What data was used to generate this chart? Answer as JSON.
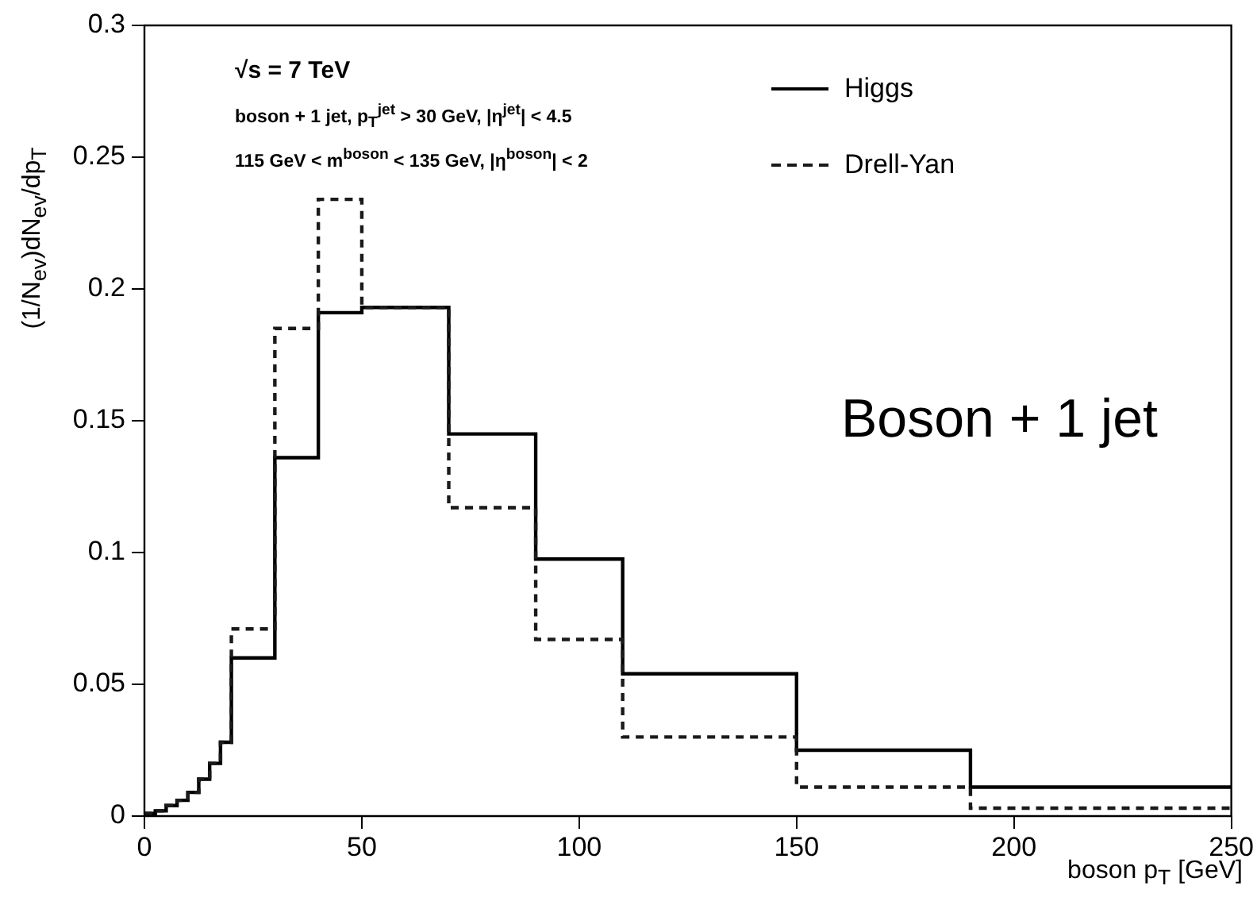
{
  "chart_data": {
    "type": "histogram",
    "xlabel": "boson p$_{T}$ [GeV]",
    "ylabel": "(1/N$_{ev}$)dN$_{ev}$/dp$_{T}$",
    "bins": [
      0,
      2.5,
      5,
      7.5,
      10,
      12.5,
      15,
      17.5,
      20,
      30,
      40,
      50,
      70,
      90,
      110,
      150,
      190,
      250
    ],
    "series": [
      {
        "name": "Higgs",
        "color": "#000000",
        "line_style": "solid",
        "values": [
          0.001,
          0.002,
          0.004,
          0.006,
          0.009,
          0.014,
          0.02,
          0.028,
          0.06,
          0.136,
          0.191,
          0.193,
          0.145,
          0.0975,
          0.054,
          0.025,
          0.011
        ]
      },
      {
        "name": "Drell-Yan",
        "color": "#1a1a1a",
        "line_style": "dashed",
        "values": [
          0.001,
          0.002,
          0.004,
          0.006,
          0.009,
          0.014,
          0.02,
          0.028,
          0.071,
          0.185,
          0.234,
          0.193,
          0.117,
          0.067,
          0.03,
          0.011,
          0.003
        ]
      }
    ],
    "xlim": [
      0,
      250
    ],
    "xticks": [
      0,
      50,
      100,
      150,
      200,
      250
    ],
    "ylim": [
      0,
      0.3
    ],
    "yticks": [
      0,
      0.05,
      0.1,
      0.15,
      0.2,
      0.25,
      0.3
    ],
    "grid": false,
    "legend": "top right",
    "annotations": [
      "√s = 7 TeV",
      "boson + 1 jet, p$_{T}$$^{jet}$ > 30 GeV, |η$^{jet}$| < 4.5",
      "115 GeV < m$^{boson}$ < 135 GeV, |η$^{boson}$| < 2",
      "Boson + 1 jet"
    ]
  }
}
